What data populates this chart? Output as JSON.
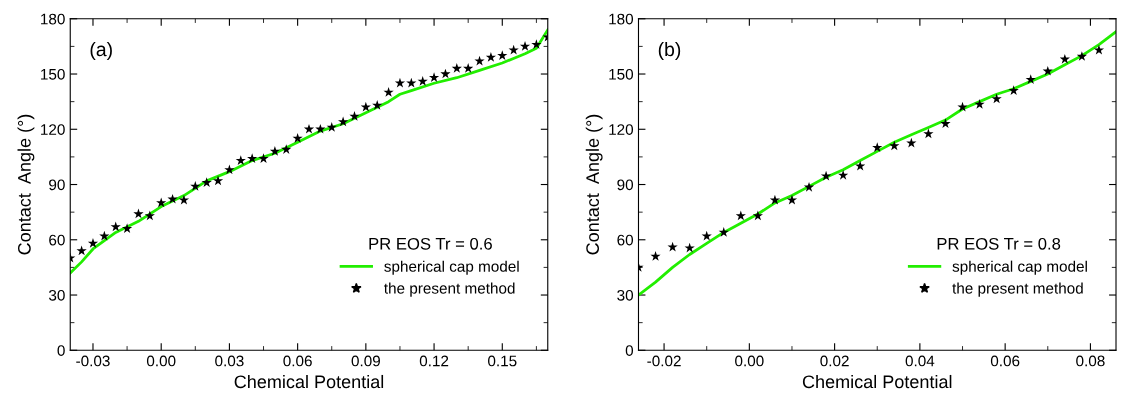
{
  "chart_data": [
    {
      "type": "line",
      "xlabel": "Chemical Potential",
      "ylabel": "Contact  Angle (°)",
      "legend_title": "PR EOS Tr = 0.6",
      "annotations": [
        "(a)"
      ],
      "legend": "bottom right",
      "grid": false,
      "xlim": [
        -0.04,
        0.17
      ],
      "ylim": [
        0,
        180
      ],
      "xticks": [
        -0.03,
        {
          "value": 0,
          "label": "0.00"
        },
        0.03,
        0.06,
        0.09,
        0.12,
        0.15
      ],
      "yticks": [
        0,
        30,
        60,
        90,
        120,
        150,
        180
      ],
      "series": [
        {
          "name": "spherical cap model",
          "color": "#22ee00",
          "marker": "none",
          "line_style": "solid",
          "x": [
            -0.04,
            -0.035,
            -0.03,
            -0.02,
            -0.01,
            0.0,
            0.01,
            0.02,
            0.03,
            0.04,
            0.05,
            0.06,
            0.07,
            0.08,
            0.09,
            0.1,
            0.105,
            0.11,
            0.12,
            0.13,
            0.14,
            0.15,
            0.16,
            0.165,
            0.17
          ],
          "values": [
            42,
            48,
            55,
            64,
            70,
            78,
            84,
            92,
            97,
            103,
            107,
            113,
            119,
            123,
            129,
            135,
            139,
            141,
            145,
            148,
            152,
            156,
            161,
            164,
            174
          ]
        },
        {
          "name": "the present method",
          "type": "scatter",
          "color": "#000000",
          "marker": "star",
          "x": [
            -0.04,
            -0.035,
            -0.03,
            -0.025,
            -0.02,
            -0.015,
            -0.01,
            -0.005,
            0.0,
            0.005,
            0.01,
            0.015,
            0.02,
            0.025,
            0.03,
            0.035,
            0.04,
            0.045,
            0.05,
            0.055,
            0.06,
            0.065,
            0.07,
            0.075,
            0.08,
            0.085,
            0.09,
            0.095,
            0.1,
            0.105,
            0.11,
            0.115,
            0.12,
            0.125,
            0.13,
            0.135,
            0.14,
            0.145,
            0.15,
            0.155,
            0.16,
            0.165,
            0.17
          ],
          "values": [
            50,
            54,
            58,
            62,
            67,
            66,
            74,
            73,
            80,
            82,
            81.5,
            89,
            91,
            92,
            98,
            103,
            104,
            104,
            108,
            109,
            115,
            120,
            120,
            121,
            124,
            127,
            132,
            133,
            140,
            145,
            145,
            146,
            148,
            150,
            153,
            153,
            157,
            159,
            160,
            163,
            165,
            166,
            170
          ]
        }
      ]
    },
    {
      "type": "line",
      "xlabel": "Chemical Potential",
      "ylabel": "Contact  Angle (°)",
      "legend_title": "PR EOS Tr = 0.8",
      "annotations": [
        "(b)"
      ],
      "legend": "bottom right",
      "grid": false,
      "xlim": [
        -0.026,
        0.086
      ],
      "ylim": [
        0,
        180
      ],
      "xticks": [
        -0.02,
        {
          "value": 0,
          "label": "0.00"
        },
        0.02,
        0.04,
        0.06,
        0.08
      ],
      "yticks": [
        0,
        30,
        60,
        90,
        120,
        150,
        180
      ],
      "series": [
        {
          "name": "spherical cap model",
          "color": "#22ee00",
          "marker": "none",
          "line_style": "solid",
          "x": [
            -0.026,
            -0.022,
            -0.018,
            -0.014,
            -0.01,
            -0.006,
            -0.002,
            0.002,
            0.006,
            0.01,
            0.014,
            0.018,
            0.022,
            0.026,
            0.03,
            0.034,
            0.038,
            0.042,
            0.046,
            0.05,
            0.054,
            0.058,
            0.062,
            0.066,
            0.07,
            0.074,
            0.078,
            0.082,
            0.086
          ],
          "values": [
            30,
            37,
            45,
            52,
            58,
            64,
            69,
            74,
            80,
            84,
            89,
            94,
            98,
            103,
            108,
            113,
            117,
            121,
            125,
            131,
            135,
            139,
            142,
            146,
            150,
            155,
            160,
            166,
            173
          ]
        },
        {
          "name": "the present method",
          "type": "scatter",
          "color": "#000000",
          "marker": "star",
          "x": [
            -0.026,
            -0.022,
            -0.018,
            -0.014,
            -0.01,
            -0.006,
            -0.002,
            0.002,
            0.006,
            0.01,
            0.014,
            0.018,
            0.022,
            0.026,
            0.03,
            0.034,
            0.038,
            0.042,
            0.046,
            0.05,
            0.054,
            0.058,
            0.062,
            0.066,
            0.07,
            0.074,
            0.078,
            0.082
          ],
          "values": [
            45,
            51,
            56,
            55.5,
            62,
            64,
            73,
            73,
            81.5,
            81.5,
            88.5,
            94.5,
            95,
            100,
            110,
            111,
            112.5,
            117.5,
            123,
            132,
            133.5,
            136.5,
            141,
            147,
            151.5,
            158,
            159.5,
            163
          ]
        }
      ]
    }
  ]
}
